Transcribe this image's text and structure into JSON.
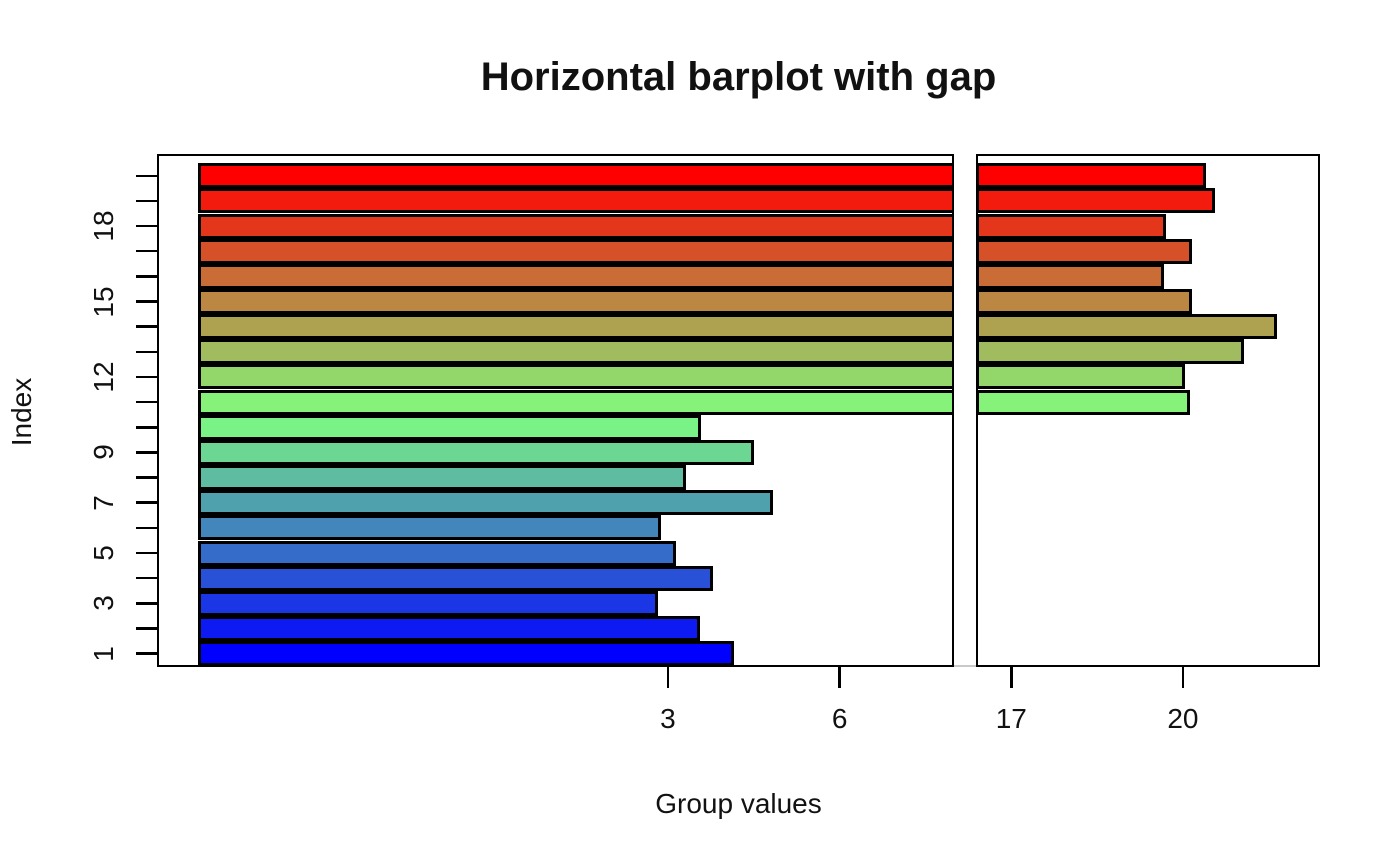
{
  "chart_data": {
    "type": "bar",
    "orientation": "horizontal",
    "title": "Horizontal barplot with gap",
    "xlabel": "Group values",
    "ylabel": "Index",
    "axis_break": {
      "style": "gap",
      "from": 8,
      "to": 16
    },
    "x_axis": {
      "ticks": [
        {
          "value": 3,
          "label": "3",
          "panel": "left"
        },
        {
          "value": 6,
          "label": "6",
          "panel": "left"
        },
        {
          "value": 17,
          "label": "17",
          "panel": "right"
        },
        {
          "value": 20,
          "label": "20",
          "panel": "right"
        }
      ]
    },
    "y_axis": {
      "tick_every_bar": true,
      "labeled_ticks": [
        {
          "index": 1,
          "label": "1"
        },
        {
          "index": 3,
          "label": "3"
        },
        {
          "index": 5,
          "label": "5"
        },
        {
          "index": 7,
          "label": "7"
        },
        {
          "index": 9,
          "label": "9"
        },
        {
          "index": 12,
          "label": "12"
        },
        {
          "index": 15,
          "label": "15"
        },
        {
          "index": 18,
          "label": "18"
        }
      ]
    },
    "bar_border_color": "#000000",
    "bars": [
      {
        "index": 1,
        "value": 4.16,
        "color": "#0000FF"
      },
      {
        "index": 2,
        "value": 3.56,
        "color": "#0D1BF2"
      },
      {
        "index": 3,
        "value": 2.83,
        "color": "#1B36E4"
      },
      {
        "index": 4,
        "value": 3.79,
        "color": "#2851D7"
      },
      {
        "index": 5,
        "value": 3.14,
        "color": "#366CC9"
      },
      {
        "index": 6,
        "value": 2.87,
        "color": "#4386BC"
      },
      {
        "index": 7,
        "value": 4.84,
        "color": "#50A1AE"
      },
      {
        "index": 8,
        "value": 3.31,
        "color": "#5EBCA1"
      },
      {
        "index": 9,
        "value": 4.5,
        "color": "#6BD793"
      },
      {
        "index": 10,
        "value": 3.57,
        "color": "#79F286"
      },
      {
        "index": 11,
        "value": 20.12,
        "color": "#86F279"
      },
      {
        "index": 12,
        "value": 20.03,
        "color": "#93D76B"
      },
      {
        "index": 13,
        "value": 21.07,
        "color": "#A1BC5E"
      },
      {
        "index": 14,
        "value": 21.64,
        "color": "#AEA150"
      },
      {
        "index": 15,
        "value": 20.16,
        "color": "#BC8643"
      },
      {
        "index": 16,
        "value": 19.67,
        "color": "#C96C36"
      },
      {
        "index": 17,
        "value": 20.16,
        "color": "#D75128"
      },
      {
        "index": 18,
        "value": 19.7,
        "color": "#E4361B"
      },
      {
        "index": 19,
        "value": 20.56,
        "color": "#F21B0D"
      },
      {
        "index": 20,
        "value": 20.41,
        "color": "#FF0000"
      }
    ]
  }
}
